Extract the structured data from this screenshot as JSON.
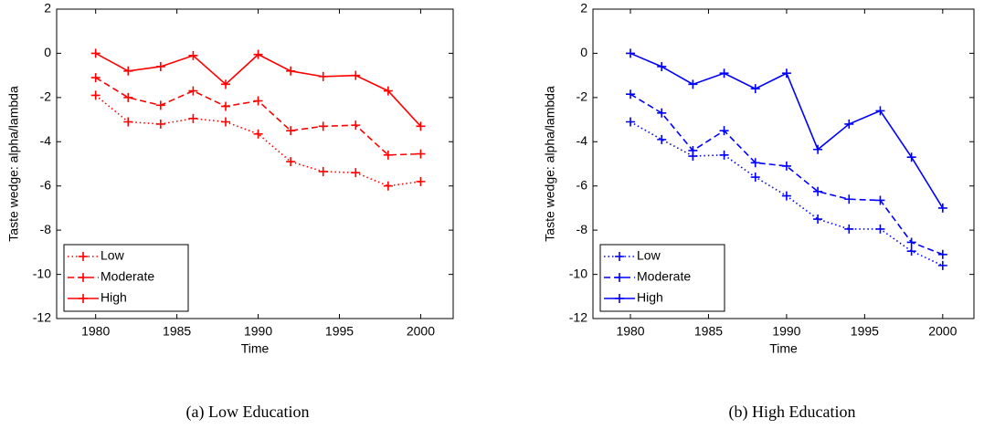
{
  "chart_data": [
    {
      "type": "line",
      "caption": "(a) Low Education",
      "xlabel": "Time",
      "ylabel": "Taste wedge: alpha/lambda",
      "x": [
        1980,
        1982,
        1984,
        1986,
        1988,
        1990,
        1992,
        1994,
        1996,
        1998,
        2000
      ],
      "series": [
        {
          "name": "Low",
          "color": "#ff0000",
          "linestyle": "dotted",
          "values": [
            -1.9,
            -3.1,
            -3.2,
            -2.95,
            -3.1,
            -3.65,
            -4.9,
            -5.35,
            -5.4,
            -6.0,
            -5.8
          ]
        },
        {
          "name": "Moderate",
          "color": "#ff0000",
          "linestyle": "dashed",
          "values": [
            -1.1,
            -2.0,
            -2.35,
            -1.7,
            -2.4,
            -2.15,
            -3.5,
            -3.3,
            -3.25,
            -4.6,
            -4.55
          ]
        },
        {
          "name": "High",
          "color": "#ff0000",
          "linestyle": "solid",
          "values": [
            0,
            -0.8,
            -0.6,
            -0.1,
            -1.4,
            -0.05,
            -0.8,
            -1.05,
            -1.0,
            -1.7,
            -3.3
          ]
        }
      ],
      "xlim": [
        1977.6,
        2002
      ],
      "ylim": [
        -12,
        2
      ],
      "xticks": [
        1980,
        1985,
        1990,
        1995,
        2000
      ],
      "yticks": [
        -12,
        -10,
        -8,
        -6,
        -4,
        -2,
        0,
        2
      ],
      "legend": "lower left"
    },
    {
      "type": "line",
      "caption": "(b) High Education",
      "xlabel": "Time",
      "ylabel": "Taste wedge: alpha/lambda",
      "x": [
        1980,
        1982,
        1984,
        1986,
        1988,
        1990,
        1992,
        1994,
        1996,
        1998,
        2000
      ],
      "series": [
        {
          "name": "Low",
          "color": "#0000ff",
          "linestyle": "dotted",
          "values": [
            -3.1,
            -3.9,
            -4.65,
            -4.6,
            -5.6,
            -6.45,
            -7.5,
            -7.95,
            -7.95,
            -8.95,
            -9.6
          ]
        },
        {
          "name": "Moderate",
          "color": "#0000ff",
          "linestyle": "dashed",
          "values": [
            -1.85,
            -2.7,
            -4.4,
            -3.5,
            -4.95,
            -5.1,
            -6.25,
            -6.6,
            -6.65,
            -8.55,
            -9.1
          ]
        },
        {
          "name": "High",
          "color": "#0000ff",
          "linestyle": "solid",
          "values": [
            0,
            -0.6,
            -1.4,
            -0.9,
            -1.6,
            -0.9,
            -4.35,
            -3.2,
            -2.6,
            -4.7,
            -7.0
          ]
        }
      ],
      "xlim": [
        1977.6,
        2002
      ],
      "ylim": [
        -12,
        2
      ],
      "xticks": [
        1980,
        1985,
        1990,
        1995,
        2000
      ],
      "yticks": [
        -12,
        -10,
        -8,
        -6,
        -4,
        -2,
        0,
        2
      ],
      "legend": "lower left"
    }
  ]
}
